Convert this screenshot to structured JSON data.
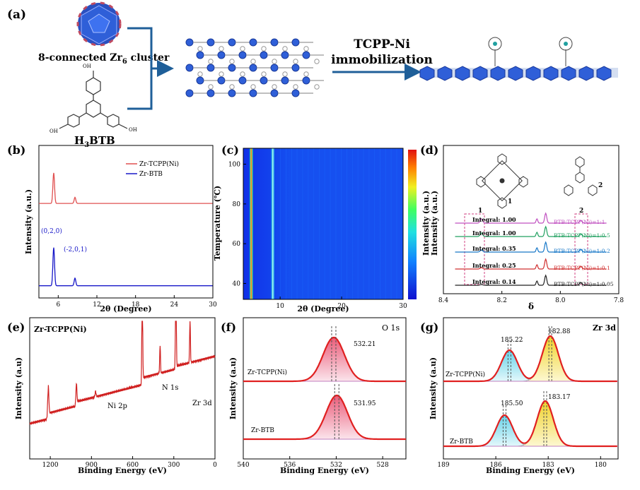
{
  "panel_a": {
    "label": "(a)",
    "cluster_label_pre": "8-connected Zr",
    "cluster_label_sub": "6",
    "cluster_label_post": " cluster",
    "linker_label_pre": "H",
    "linker_label_sub": "3",
    "linker_label_post": "BTB",
    "process_line1": "TCPP-Ni",
    "process_line2": "immobilization",
    "cooh": "OH"
  },
  "colors": {
    "red": "#e05050",
    "blue": "#1818c8",
    "arrow": "#1f5f99",
    "fill_red": "#f2a3b3",
    "fill_cyan": "#a6e8f2",
    "fill_yellow": "#f8ee8a",
    "purple": "#c050c0",
    "green": "#20a060",
    "black": "#222222"
  },
  "chart_data": [
    {
      "panel": "(b)",
      "type": "line",
      "xlabel": "2θ (Degree)",
      "ylabel": "Intensity (a.u.)",
      "xlim": [
        3,
        30
      ],
      "xticks": [
        "6",
        "12",
        "18",
        "24",
        "30"
      ],
      "series": [
        {
          "name": "Zr-TCPP(Ni)",
          "color": "#e05050",
          "baseline": 0.62,
          "peaks": [
            [
              5.3,
              0.2
            ],
            [
              8.6,
              0.04
            ]
          ]
        },
        {
          "name": "Zr-BTB",
          "color": "#1818c8",
          "baseline": 0.08,
          "peaks": [
            [
              5.3,
              0.25
            ],
            [
              8.6,
              0.05
            ]
          ]
        }
      ],
      "annotations": [
        "(0,2,0)",
        "(-2,0,1)"
      ]
    },
    {
      "panel": "(c)",
      "type": "heatmap",
      "xlabel": "2θ (Degree)",
      "ylabel": "Temperature (℃)",
      "colorbar_label": "Intensity (a.u.)",
      "xlim": [
        4,
        30
      ],
      "ylim": [
        32,
        108
      ],
      "xticks": [
        "10",
        "20",
        "30"
      ],
      "yticks": [
        "40",
        "60",
        "80",
        "100"
      ],
      "bright_lines": [
        5.3,
        8.8
      ]
    },
    {
      "panel": "(d)",
      "type": "line",
      "xlabel": "δ",
      "ylabel": "Intensity (a.u.)",
      "xlim": [
        8.4,
        7.8
      ],
      "xticks": [
        "8.4",
        "8.2",
        "8.0",
        "7.8"
      ],
      "series": [
        {
          "name": "BTB:TCPP(Ni)=1:1",
          "integral": "Integral: 1.00",
          "color": "#c050c0"
        },
        {
          "name": "BTB:TCPP(Ni)=1:0.5",
          "integral": "Integral: 1.00",
          "color": "#20a060"
        },
        {
          "name": "BTB:TCPP(Ni)=1:0.2",
          "integral": "Integral: 0.35",
          "color": "#1878c8"
        },
        {
          "name": "BTB:TCPP(Ni)=1:0.1",
          "integral": "Integral: 0.25",
          "color": "#d03030"
        },
        {
          "name": "BTB:TCPP(Ni)=1:0.05",
          "integral": "Integral: 0.14",
          "color": "#222222"
        }
      ],
      "markers": [
        "1",
        "2"
      ]
    },
    {
      "panel": "(e)",
      "type": "line",
      "title": "Zr-TCPP(Ni)",
      "xlabel": "Binding Energy (eV)",
      "ylabel": "Intensity (a.u)",
      "xlim": [
        1350,
        0
      ],
      "xticks": [
        "1200",
        "900",
        "600",
        "300",
        "0"
      ],
      "annotations": [
        "Ni 2p",
        "N 1s",
        "Zr 3d"
      ]
    },
    {
      "panel": "(f)",
      "type": "line",
      "title": "O 1s",
      "xlabel": "Binding Energy (eV)",
      "ylabel": "Intensity (a.u)",
      "xlim": [
        540,
        526
      ],
      "xticks": [
        "540",
        "536",
        "532",
        "528"
      ],
      "series": [
        {
          "name": "Zr-TCPP(Ni)",
          "peak": 532.21,
          "label": "532.21"
        },
        {
          "name": "Zr-BTB",
          "peak": 531.95,
          "label": "531.95"
        }
      ]
    },
    {
      "panel": "(g)",
      "type": "line",
      "title": "Zr 3d",
      "xlabel": "Binding Energy (eV)",
      "ylabel": "Intensity (a.u)",
      "xlim": [
        189,
        179
      ],
      "xticks": [
        "189",
        "186",
        "183",
        "180"
      ],
      "series": [
        {
          "name": "Zr-TCPP(Ni)",
          "peaks": [
            185.22,
            182.88
          ],
          "labels": [
            "185.22",
            "182.88"
          ]
        },
        {
          "name": "Zr-BTB",
          "peaks": [
            185.5,
            183.17
          ],
          "labels": [
            "185.50",
            "183.17"
          ]
        }
      ]
    }
  ]
}
